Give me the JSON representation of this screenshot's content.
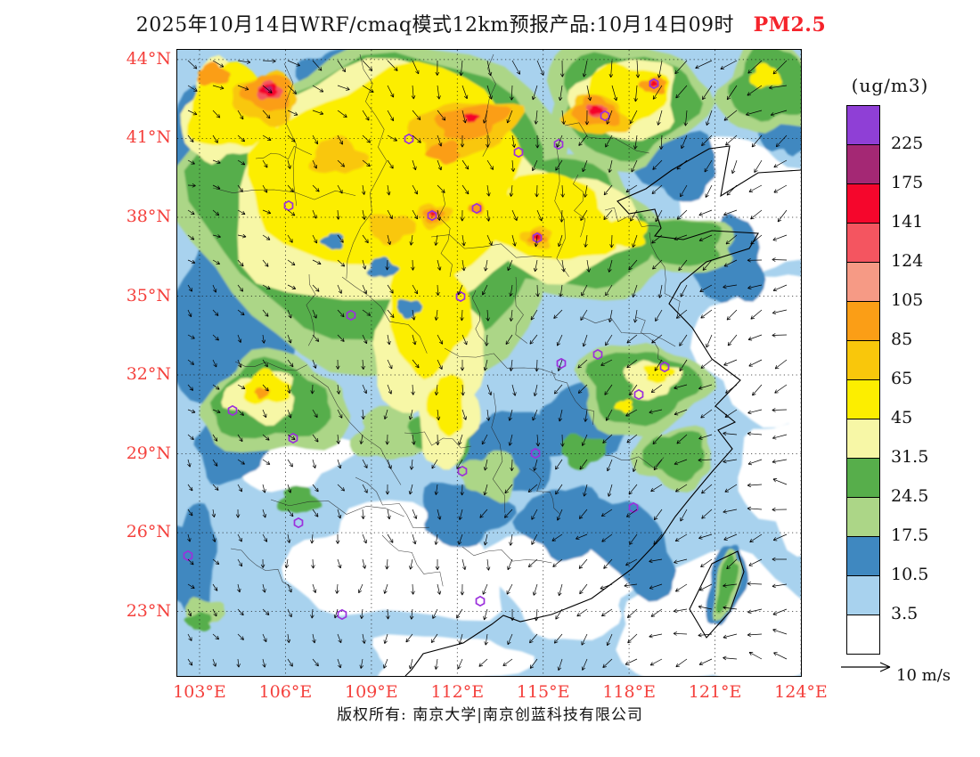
{
  "title": {
    "main": "2025年10月14日WRF/cmaq模式12km预报产品:10月14日09时",
    "highlight": "PM2.5",
    "highlight_color": "#F5232B"
  },
  "colorbar": {
    "units": "(ug/m3)",
    "ticks": [
      "225",
      "175",
      "141",
      "124",
      "105",
      "85",
      "65",
      "45",
      "31.5",
      "24.5",
      "17.5",
      "10.5",
      "3.5"
    ],
    "colors": [
      "#8F3FD6",
      "#A42874",
      "#F5062C",
      "#F45560",
      "#F69A85",
      "#FB9E16",
      "#F9C70B",
      "#FCEE00",
      "#F7F7A6",
      "#57AE4B",
      "#ACD687",
      "#3F88C0",
      "#A8D2EE",
      "#FFFFFF"
    ]
  },
  "axes": {
    "label_color": "#F4413D",
    "lat": {
      "labels": [
        "44°N",
        "41°N",
        "38°N",
        "35°N",
        "32°N",
        "29°N",
        "26°N",
        "23°N"
      ],
      "values": [
        44,
        41,
        38,
        35,
        32,
        29,
        26,
        23
      ]
    },
    "lon": {
      "labels": [
        "103°E",
        "106°E",
        "109°E",
        "112°E",
        "115°E",
        "118°E",
        "121°E",
        "124°E"
      ],
      "values": [
        103,
        106,
        109,
        112,
        115,
        118,
        121,
        124
      ]
    }
  },
  "wind_legend": {
    "label": "10 m/s"
  },
  "footer": {
    "text": "版权所有: 南京大学|南京创蓝科技有限公司"
  },
  "map": {
    "city_markers": [
      [
        535,
        38
      ],
      [
        480,
        74
      ],
      [
        428,
        106
      ],
      [
        383,
        115
      ],
      [
        260,
        100
      ],
      [
        125,
        175
      ],
      [
        286,
        186
      ],
      [
        336,
        178
      ],
      [
        404,
        211
      ],
      [
        318,
        277
      ],
      [
        195,
        298
      ],
      [
        431,
        352
      ],
      [
        472,
        342
      ],
      [
        547,
        356
      ],
      [
        518,
        387
      ],
      [
        62,
        405
      ],
      [
        130,
        436
      ],
      [
        402,
        453
      ],
      [
        320,
        473
      ],
      [
        136,
        531
      ],
      [
        512,
        514
      ],
      [
        12,
        568
      ],
      [
        185,
        634
      ],
      [
        340,
        619
      ]
    ]
  }
}
